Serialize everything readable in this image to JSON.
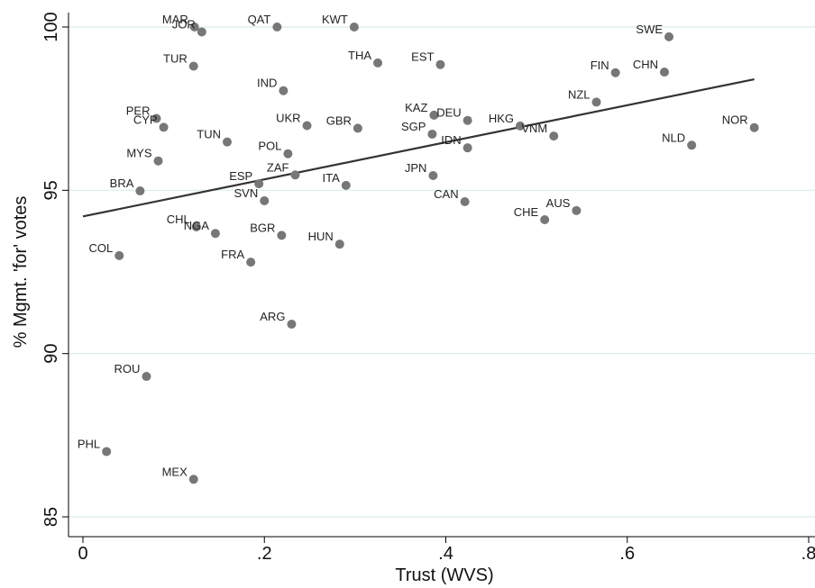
{
  "chart_data": {
    "type": "scatter",
    "title": "",
    "xlabel": "Trust (WVS)",
    "ylabel": "% Mgmt. 'for' votes",
    "xlim": [
      -0.02,
      0.8
    ],
    "ylim": [
      84.5,
      100.5
    ],
    "x_ticks": [
      0,
      0.2,
      0.4,
      0.6,
      0.8
    ],
    "x_tick_labels": [
      "0",
      ".2",
      ".4",
      ".6",
      ".8"
    ],
    "y_ticks": [
      85,
      90,
      95,
      100
    ],
    "y_tick_labels": [
      "85",
      "90",
      "95",
      "100"
    ],
    "grid": "horizontal",
    "legend": "none",
    "colors": {
      "point": "#777777",
      "fit_line": "#333333",
      "grid": "#dcebea",
      "axis": "#000000"
    },
    "fit_line": {
      "x": [
        0,
        0.74
      ],
      "y": [
        94.2,
        98.4
      ]
    },
    "points": [
      {
        "label": "MAR",
        "x": 0.123,
        "y": 100.0
      },
      {
        "label": "JOR",
        "x": 0.131,
        "y": 99.85
      },
      {
        "label": "QAT",
        "x": 0.214,
        "y": 100.0
      },
      {
        "label": "KWT",
        "x": 0.299,
        "y": 100.0
      },
      {
        "label": "SWE",
        "x": 0.646,
        "y": 99.7
      },
      {
        "label": "TUR",
        "x": 0.122,
        "y": 98.8
      },
      {
        "label": "THA",
        "x": 0.325,
        "y": 98.9
      },
      {
        "label": "EST",
        "x": 0.394,
        "y": 98.85
      },
      {
        "label": "FIN",
        "x": 0.587,
        "y": 98.6
      },
      {
        "label": "CHN",
        "x": 0.641,
        "y": 98.62
      },
      {
        "label": "IND",
        "x": 0.221,
        "y": 98.05
      },
      {
        "label": "NZL",
        "x": 0.566,
        "y": 97.7
      },
      {
        "label": "PER",
        "x": 0.081,
        "y": 97.2
      },
      {
        "label": "CYP",
        "x": 0.089,
        "y": 96.93
      },
      {
        "label": "UKR",
        "x": 0.247,
        "y": 96.98
      },
      {
        "label": "GBR",
        "x": 0.303,
        "y": 96.9
      },
      {
        "label": "KAZ",
        "x": 0.387,
        "y": 97.3
      },
      {
        "label": "DEU",
        "x": 0.424,
        "y": 97.14
      },
      {
        "label": "HKG",
        "x": 0.482,
        "y": 96.97
      },
      {
        "label": "VNM",
        "x": 0.519,
        "y": 96.66
      },
      {
        "label": "NOR",
        "x": 0.74,
        "y": 96.92
      },
      {
        "label": "SGP",
        "x": 0.385,
        "y": 96.72
      },
      {
        "label": "IDN",
        "x": 0.424,
        "y": 96.3
      },
      {
        "label": "NLD",
        "x": 0.671,
        "y": 96.38
      },
      {
        "label": "TUN",
        "x": 0.159,
        "y": 96.48
      },
      {
        "label": "POL",
        "x": 0.226,
        "y": 96.12
      },
      {
        "label": "MYS",
        "x": 0.083,
        "y": 95.9
      },
      {
        "label": "ZAF",
        "x": 0.234,
        "y": 95.47
      },
      {
        "label": "ESP",
        "x": 0.194,
        "y": 95.2
      },
      {
        "label": "ITA",
        "x": 0.29,
        "y": 95.15
      },
      {
        "label": "JPN",
        "x": 0.386,
        "y": 95.45
      },
      {
        "label": "BRA",
        "x": 0.063,
        "y": 94.98
      },
      {
        "label": "SVN",
        "x": 0.2,
        "y": 94.68
      },
      {
        "label": "CAN",
        "x": 0.421,
        "y": 94.65
      },
      {
        "label": "AUS",
        "x": 0.544,
        "y": 94.38
      },
      {
        "label": "CHE",
        "x": 0.509,
        "y": 94.1
      },
      {
        "label": "CHL",
        "x": 0.125,
        "y": 93.88
      },
      {
        "label": "NGA",
        "x": 0.146,
        "y": 93.68
      },
      {
        "label": "BGR",
        "x": 0.219,
        "y": 93.62
      },
      {
        "label": "HUN",
        "x": 0.283,
        "y": 93.35
      },
      {
        "label": "COL",
        "x": 0.04,
        "y": 93.0
      },
      {
        "label": "FRA",
        "x": 0.185,
        "y": 92.8
      },
      {
        "label": "ARG",
        "x": 0.23,
        "y": 90.9
      },
      {
        "label": "ROU",
        "x": 0.07,
        "y": 89.3
      },
      {
        "label": "PHL",
        "x": 0.026,
        "y": 87.0
      },
      {
        "label": "MEX",
        "x": 0.122,
        "y": 86.15
      }
    ]
  }
}
